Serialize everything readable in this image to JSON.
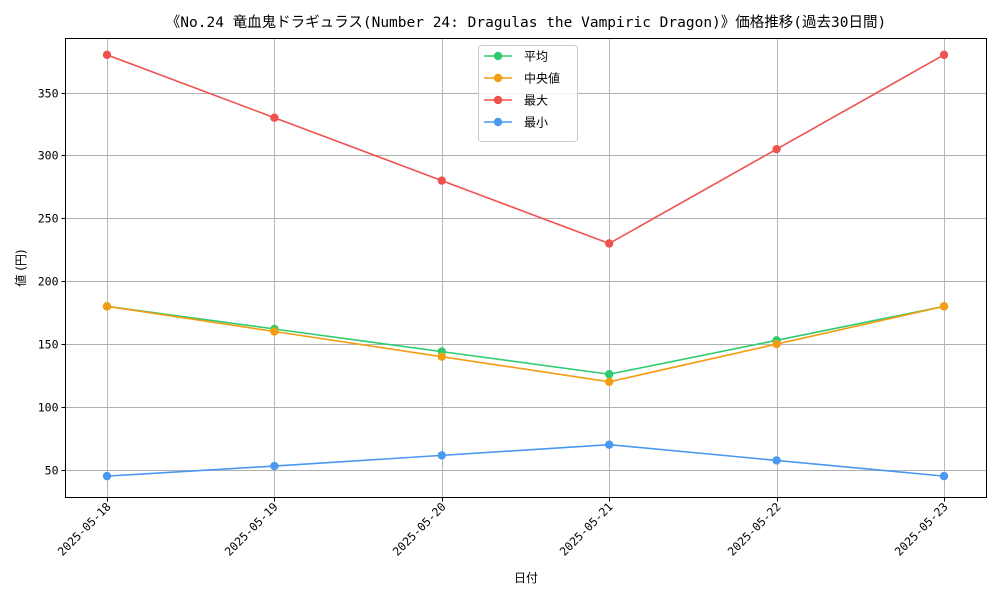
{
  "chart_data": {
    "type": "line",
    "title": "《No.24 竜血鬼ドラギュラス(Number 24: Dragulas the Vampiric Dragon)》価格推移(過去30日間)",
    "xlabel": "日付",
    "ylabel": "値 (円)",
    "categories": [
      "2025-05-18",
      "2025-05-19",
      "2025-05-20",
      "2025-05-21",
      "2025-05-22",
      "2025-05-23"
    ],
    "ylim": [
      28,
      393
    ],
    "yticks": [
      50,
      100,
      150,
      200,
      250,
      300,
      350
    ],
    "grid": true,
    "legend_position": "top-center",
    "series": [
      {
        "name": "平均",
        "color": "#2ecc71",
        "values": [
          180,
          162,
          144,
          126,
          153,
          180
        ]
      },
      {
        "name": "中央値",
        "color": "#f39c12",
        "values": [
          180,
          160,
          140,
          120,
          150,
          180
        ]
      },
      {
        "name": "最大",
        "color": "#ef5350",
        "values": [
          380,
          330,
          280,
          230,
          305,
          380
        ]
      },
      {
        "name": "最小",
        "color": "#4a98f0",
        "values": [
          45,
          53,
          61.5,
          70,
          57.5,
          45
        ]
      }
    ]
  }
}
